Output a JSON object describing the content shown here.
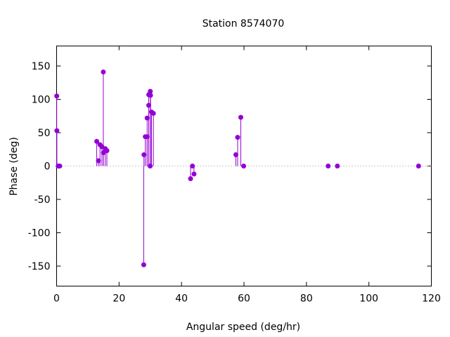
{
  "chart_data": {
    "type": "scatter",
    "style": "stem",
    "title": "Station 8574070",
    "xlabel": "Angular speed (deg/hr)",
    "ylabel": "Phase (deg)",
    "xlim": [
      0,
      120
    ],
    "ylim": [
      -180,
      180
    ],
    "xticks": [
      0,
      20,
      40,
      60,
      80,
      100,
      120
    ],
    "yticks": [
      -150,
      -100,
      -50,
      0,
      50,
      100,
      150
    ],
    "grid": false,
    "zero_line": "dotted",
    "series": [
      {
        "color": "#9400d3",
        "points": [
          {
            "x": 0.04,
            "y": 105
          },
          {
            "x": 0.08,
            "y": 53
          },
          {
            "x": 0.5,
            "y": 0
          },
          {
            "x": 1.0,
            "y": 0
          },
          {
            "x": 12.85,
            "y": 37
          },
          {
            "x": 13.4,
            "y": 8
          },
          {
            "x": 13.9,
            "y": 32
          },
          {
            "x": 14.5,
            "y": 29
          },
          {
            "x": 14.96,
            "y": 141
          },
          {
            "x": 15.0,
            "y": 20
          },
          {
            "x": 15.6,
            "y": 26
          },
          {
            "x": 16.1,
            "y": 23
          },
          {
            "x": 27.97,
            "y": 17
          },
          {
            "x": 27.9,
            "y": -148
          },
          {
            "x": 28.4,
            "y": 44
          },
          {
            "x": 28.98,
            "y": 44
          },
          {
            "x": 29.0,
            "y": 72
          },
          {
            "x": 29.5,
            "y": 91
          },
          {
            "x": 29.5,
            "y": 107
          },
          {
            "x": 30.0,
            "y": 112
          },
          {
            "x": 30.08,
            "y": 106
          },
          {
            "x": 29.96,
            "y": 0
          },
          {
            "x": 30.4,
            "y": 81
          },
          {
            "x": 31.0,
            "y": 79
          },
          {
            "x": 42.9,
            "y": -19
          },
          {
            "x": 43.5,
            "y": 0
          },
          {
            "x": 44.0,
            "y": -12
          },
          {
            "x": 57.4,
            "y": 17
          },
          {
            "x": 57.97,
            "y": 43
          },
          {
            "x": 58.98,
            "y": 73
          },
          {
            "x": 59.9,
            "y": 0
          },
          {
            "x": 86.95,
            "y": 0
          },
          {
            "x": 89.9,
            "y": 0
          },
          {
            "x": 115.9,
            "y": 0
          }
        ]
      }
    ]
  }
}
